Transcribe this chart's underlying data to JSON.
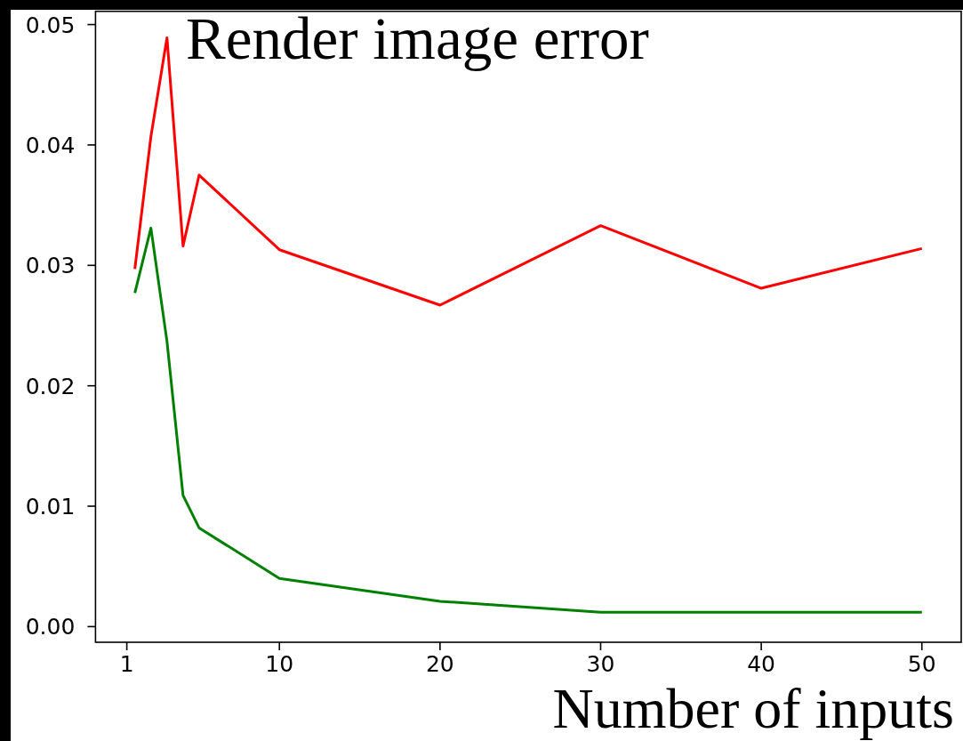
{
  "chart_data": {
    "type": "line",
    "title": "Render image error",
    "xlabel": "Number of inputs",
    "x": [
      1,
      2,
      3,
      4,
      5,
      10,
      20,
      30,
      40,
      50
    ],
    "series": [
      {
        "color": "#ff0000",
        "values": [
          0.0297,
          0.0407,
          0.0489,
          0.0316,
          0.0375,
          0.0313,
          0.0267,
          0.0333,
          0.0281,
          0.0314
        ]
      },
      {
        "color": "#008000",
        "values": [
          0.0277,
          0.0331,
          0.0237,
          0.0109,
          0.0082,
          0.004,
          0.0021,
          0.0012,
          0.0012,
          0.0012
        ]
      }
    ],
    "xlim": [
      -1.45,
      52.45
    ],
    "ylim": [
      -0.0013,
      0.0511
    ],
    "xticks": [
      {
        "value": 0.5,
        "label": "1"
      },
      10,
      20,
      30,
      40,
      50
    ],
    "yticks": [
      {
        "value": 0,
        "label": "0.00"
      },
      0.01,
      0.02,
      0.03,
      0.04,
      0.05
    ],
    "line_style": "solid"
  }
}
